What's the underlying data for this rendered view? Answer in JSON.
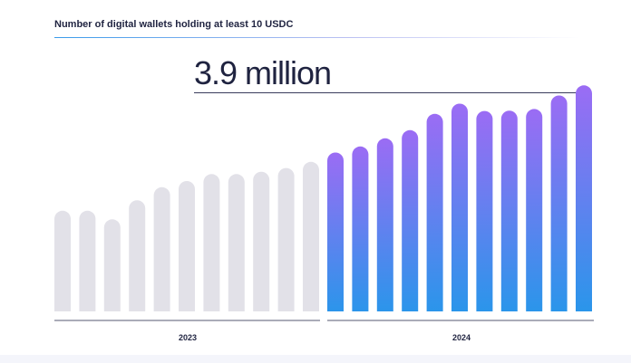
{
  "title": "Number of digital wallets holding at least 10 USDC",
  "headline": "3.9 million",
  "chart_data": {
    "type": "bar",
    "groups": [
      {
        "label": "2023",
        "color": "#e2e1e8",
        "values": [
          2.47,
          2.47,
          2.26,
          2.73,
          3.05,
          3.2,
          3.37,
          3.37,
          3.43,
          3.52,
          3.67
        ]
      },
      {
        "label": "2024",
        "gradient_top": "#9b6cf4",
        "gradient_bottom": "#2697ea",
        "values": [
          3.9,
          4.05,
          4.25,
          4.45,
          4.85,
          5.1,
          4.92,
          4.93,
          4.97,
          5.3,
          5.55
        ]
      }
    ],
    "ylim": [
      0,
      5.6
    ],
    "grid": false,
    "legend": "none"
  }
}
